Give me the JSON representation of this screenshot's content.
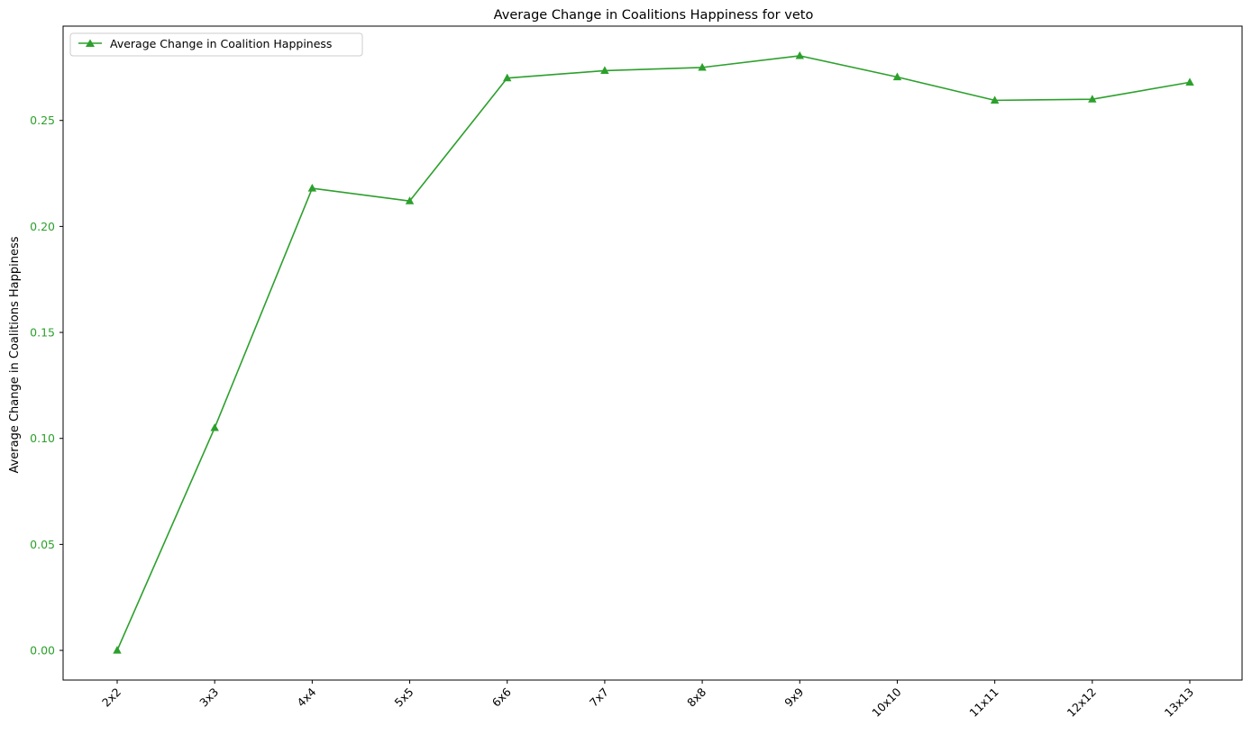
{
  "chart_data": {
    "type": "line",
    "title": "Average Change in Coalitions Happiness for veto",
    "xlabel": "",
    "ylabel": "Average Change in Coalitions Happiness",
    "categories": [
      "2x2",
      "3x3",
      "4x4",
      "5x5",
      "6x6",
      "7x7",
      "8x8",
      "9x9",
      "10x10",
      "11x11",
      "12x12",
      "13x13"
    ],
    "series": [
      {
        "name": "Average Change in Coalition Happiness",
        "values": [
          0.0,
          0.105,
          0.218,
          0.212,
          0.27,
          0.2735,
          0.275,
          0.2805,
          0.2705,
          0.2595,
          0.26,
          0.268
        ],
        "color": "#2ca02c",
        "marker": "triangle-up"
      }
    ],
    "ylim": [
      -0.014,
      0.2945
    ],
    "yticks": [
      0.0,
      0.05,
      0.1,
      0.15,
      0.2,
      0.25
    ],
    "ytick_labels": [
      "0.00",
      "0.05",
      "0.10",
      "0.15",
      "0.20",
      "0.25"
    ],
    "ytick_color": "#2ca02c",
    "xtick_rotation": 45,
    "grid": false,
    "legend_position": "upper left"
  }
}
